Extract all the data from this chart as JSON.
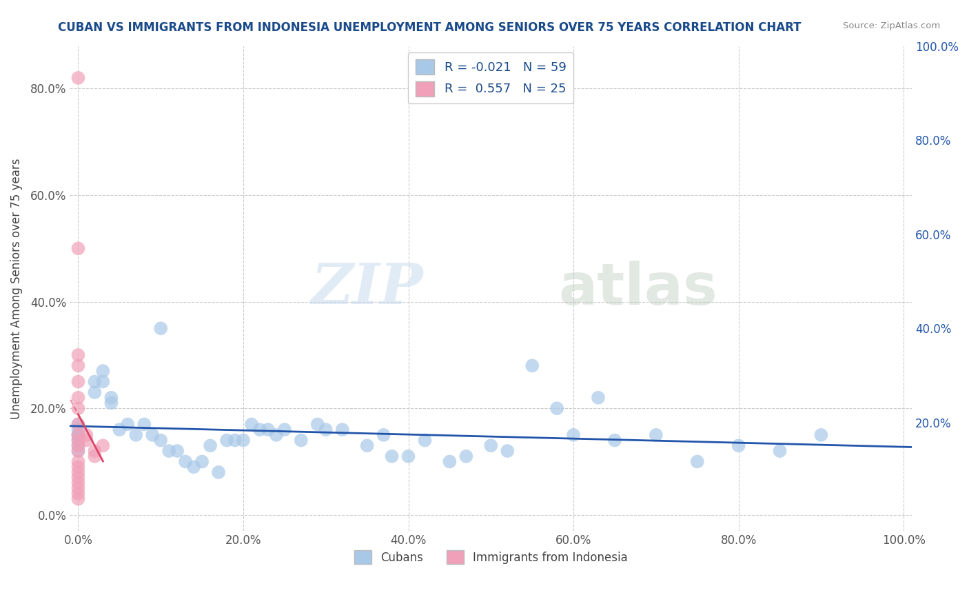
{
  "title": "CUBAN VS IMMIGRANTS FROM INDONESIA UNEMPLOYMENT AMONG SENIORS OVER 75 YEARS CORRELATION CHART",
  "source": "Source: ZipAtlas.com",
  "ylabel": "Unemployment Among Seniors over 75 years",
  "legend_labels": [
    "Cubans",
    "Immigrants from Indonesia"
  ],
  "r_cubans": -0.021,
  "n_cubans": 59,
  "r_indonesia": 0.557,
  "n_indonesia": 25,
  "cubans_color": "#a8c8e8",
  "indonesia_color": "#f0a0b8",
  "cubans_line_color": "#2255aa",
  "indonesia_line_color": "#dd4466",
  "background_color": "#ffffff",
  "grid_color": "#cccccc",
  "xlim": [
    -0.01,
    1.01
  ],
  "ylim": [
    -0.03,
    0.88
  ],
  "cubans_x": [
    0.0,
    0.0,
    0.0,
    0.0,
    0.0,
    0.0,
    0.0,
    0.0,
    0.02,
    0.02,
    0.03,
    0.03,
    0.04,
    0.04,
    0.05,
    0.06,
    0.07,
    0.08,
    0.09,
    0.1,
    0.1,
    0.11,
    0.12,
    0.13,
    0.14,
    0.15,
    0.16,
    0.17,
    0.18,
    0.19,
    0.2,
    0.21,
    0.22,
    0.23,
    0.24,
    0.25,
    0.27,
    0.29,
    0.3,
    0.32,
    0.35,
    0.37,
    0.38,
    0.4,
    0.42,
    0.45,
    0.47,
    0.5,
    0.52,
    0.55,
    0.58,
    0.6,
    0.63,
    0.65,
    0.7,
    0.75,
    0.8,
    0.85,
    0.9
  ],
  "cubans_y": [
    0.15,
    0.15,
    0.15,
    0.14,
    0.13,
    0.12,
    0.16,
    0.17,
    0.25,
    0.23,
    0.27,
    0.25,
    0.21,
    0.22,
    0.16,
    0.17,
    0.15,
    0.17,
    0.15,
    0.35,
    0.14,
    0.12,
    0.12,
    0.1,
    0.09,
    0.1,
    0.13,
    0.08,
    0.14,
    0.14,
    0.14,
    0.17,
    0.16,
    0.16,
    0.15,
    0.16,
    0.14,
    0.17,
    0.16,
    0.16,
    0.13,
    0.15,
    0.11,
    0.11,
    0.14,
    0.1,
    0.11,
    0.13,
    0.12,
    0.28,
    0.2,
    0.15,
    0.22,
    0.14,
    0.15,
    0.1,
    0.13,
    0.12,
    0.15
  ],
  "indonesia_x": [
    0.0,
    0.0,
    0.0,
    0.0,
    0.0,
    0.0,
    0.0,
    0.0,
    0.0,
    0.0,
    0.0,
    0.0,
    0.0,
    0.0,
    0.0,
    0.0,
    0.0,
    0.0,
    0.0,
    0.0,
    0.01,
    0.01,
    0.02,
    0.02,
    0.03
  ],
  "indonesia_y": [
    0.82,
    0.5,
    0.3,
    0.28,
    0.25,
    0.22,
    0.2,
    0.17,
    0.15,
    0.14,
    0.13,
    0.12,
    0.1,
    0.09,
    0.08,
    0.07,
    0.06,
    0.05,
    0.04,
    0.03,
    0.15,
    0.14,
    0.12,
    0.11,
    0.13
  ],
  "watermark_zip": "ZIP",
  "watermark_atlas": "atlas",
  "title_color": "#1a4a8a",
  "r_label_color": "#1a4a8a",
  "right_ytick_color": "#2255aa"
}
